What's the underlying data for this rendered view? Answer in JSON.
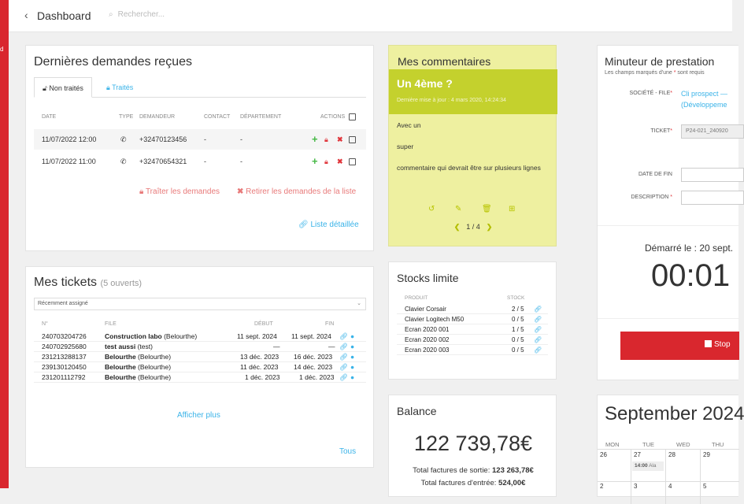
{
  "app": {
    "sidebar_letter": "d"
  },
  "topbar": {
    "back_icon": "chevron-left-icon",
    "title": "Dashboard",
    "search_placeholder": "Rechercher..."
  },
  "demandes": {
    "title": "Dernières demandes reçues",
    "tabs": [
      {
        "label": "Non traités"
      },
      {
        "label": "Traités"
      }
    ],
    "columns": {
      "date": "DATE",
      "type": "TYPE",
      "demandeur": "DEMANDEUR",
      "contact": "CONTACT",
      "departement": "DÉPARTEMENT",
      "actions": "ACTIONS"
    },
    "rows": [
      {
        "date": "11/07/2022 12:00",
        "demandeur": "+32470123456",
        "contact": "-",
        "departement": "-"
      },
      {
        "date": "11/07/2022 11:00",
        "demandeur": "+32470654321",
        "contact": "-",
        "departement": "-"
      }
    ],
    "traiter_label": "Traîter les demandes",
    "retirer_label": "Retirer les demandes de la liste",
    "liste_label": "Liste détaillée"
  },
  "tickets": {
    "title": "Mes tickets",
    "count_label": "(5 ouverts)",
    "filter": "Récemment assigné",
    "columns": {
      "num": "N°",
      "file": "FILE",
      "debut": "DÉBUT",
      "fin": "FIN"
    },
    "rows": [
      {
        "num": "240703204726",
        "file_bold": "Construction labo",
        "file_rest": " (Belourthe)",
        "debut": "11 sept. 2024",
        "fin": "11 sept. 2024"
      },
      {
        "num": "240702925680",
        "file_bold": "test aussi",
        "file_rest": " (test)",
        "debut": "—",
        "fin": "—"
      },
      {
        "num": "231213288137",
        "file_bold": "Belourthe",
        "file_rest": " (Belourthe)",
        "debut": "13 déc. 2023",
        "fin": "16 déc. 2023"
      },
      {
        "num": "239130120450",
        "file_bold": "Belourthe",
        "file_rest": " (Belourthe)",
        "debut": "11 déc. 2023",
        "fin": "14 déc. 2023"
      },
      {
        "num": "231201112792",
        "file_bold": "Belourthe",
        "file_rest": " (Belourthe)",
        "debut": "1 déc. 2023",
        "fin": "1 déc. 2023"
      }
    ],
    "more_label": "Afficher plus",
    "all_label": "Tous"
  },
  "comments": {
    "title": "Mes commentaires",
    "comment_title": "Un 4ème ?",
    "updated": "Dernière mise à jour : 4 mars 2020, 14:24:34",
    "lines": [
      "Avec un",
      "super",
      "commentaire qui devrait être sur plusieurs lignes"
    ],
    "pager": "1 / 4"
  },
  "stocks": {
    "title": "Stocks limite",
    "columns": {
      "produit": "PRODUIT",
      "stock": "STOCK"
    },
    "rows": [
      {
        "produit": "Clavier Corsair",
        "stock": "2 / 5"
      },
      {
        "produit": "Clavier Logitech M50",
        "stock": "0 / 5"
      },
      {
        "produit": "Ecran 2020 001",
        "stock": "1 / 5"
      },
      {
        "produit": "Ecran 2020 002",
        "stock": "0 / 5"
      },
      {
        "produit": "Ecran 2020 003",
        "stock": "0 / 5"
      }
    ]
  },
  "balance": {
    "title": "Balance",
    "amount": "122 739,78€",
    "sortie_label": "Total factures de sortie:",
    "sortie_value": "123 263,78€",
    "entree_label": "Total factures d'entrée:",
    "entree_value": "524,00€"
  },
  "minuteur": {
    "title": "Minuteur de prestation",
    "subtitle_pre": "Les champs marqués d'une",
    "subtitle_post": "sont requis",
    "societe_label": "SOCIÉTÉ - FILE",
    "societe_value_1": "Cli prospect —",
    "societe_value_2": "(Développeme",
    "ticket_label": "TICKET",
    "ticket_value": "P24-021_240920",
    "datefin_label": "DATE DE FIN",
    "description_label": "DESCRIPTION",
    "started": "Démarré le : 20 sept.",
    "timer": "00:01",
    "stop_label": "Stop"
  },
  "calendar": {
    "title": "September 2024",
    "weekdays": [
      "MON",
      "TUE",
      "WED",
      "THU"
    ],
    "week1": [
      "26",
      "27",
      "28",
      "29"
    ],
    "week2": [
      "2",
      "3",
      "4",
      "5"
    ],
    "event_time": "14:00",
    "event_text": "Ala"
  },
  "colors": {
    "accent": "#d9272e",
    "link": "#3ab3e8",
    "comment_bg": "#eef0a0",
    "comment_band": "#c4d12d",
    "success": "#45b845"
  }
}
